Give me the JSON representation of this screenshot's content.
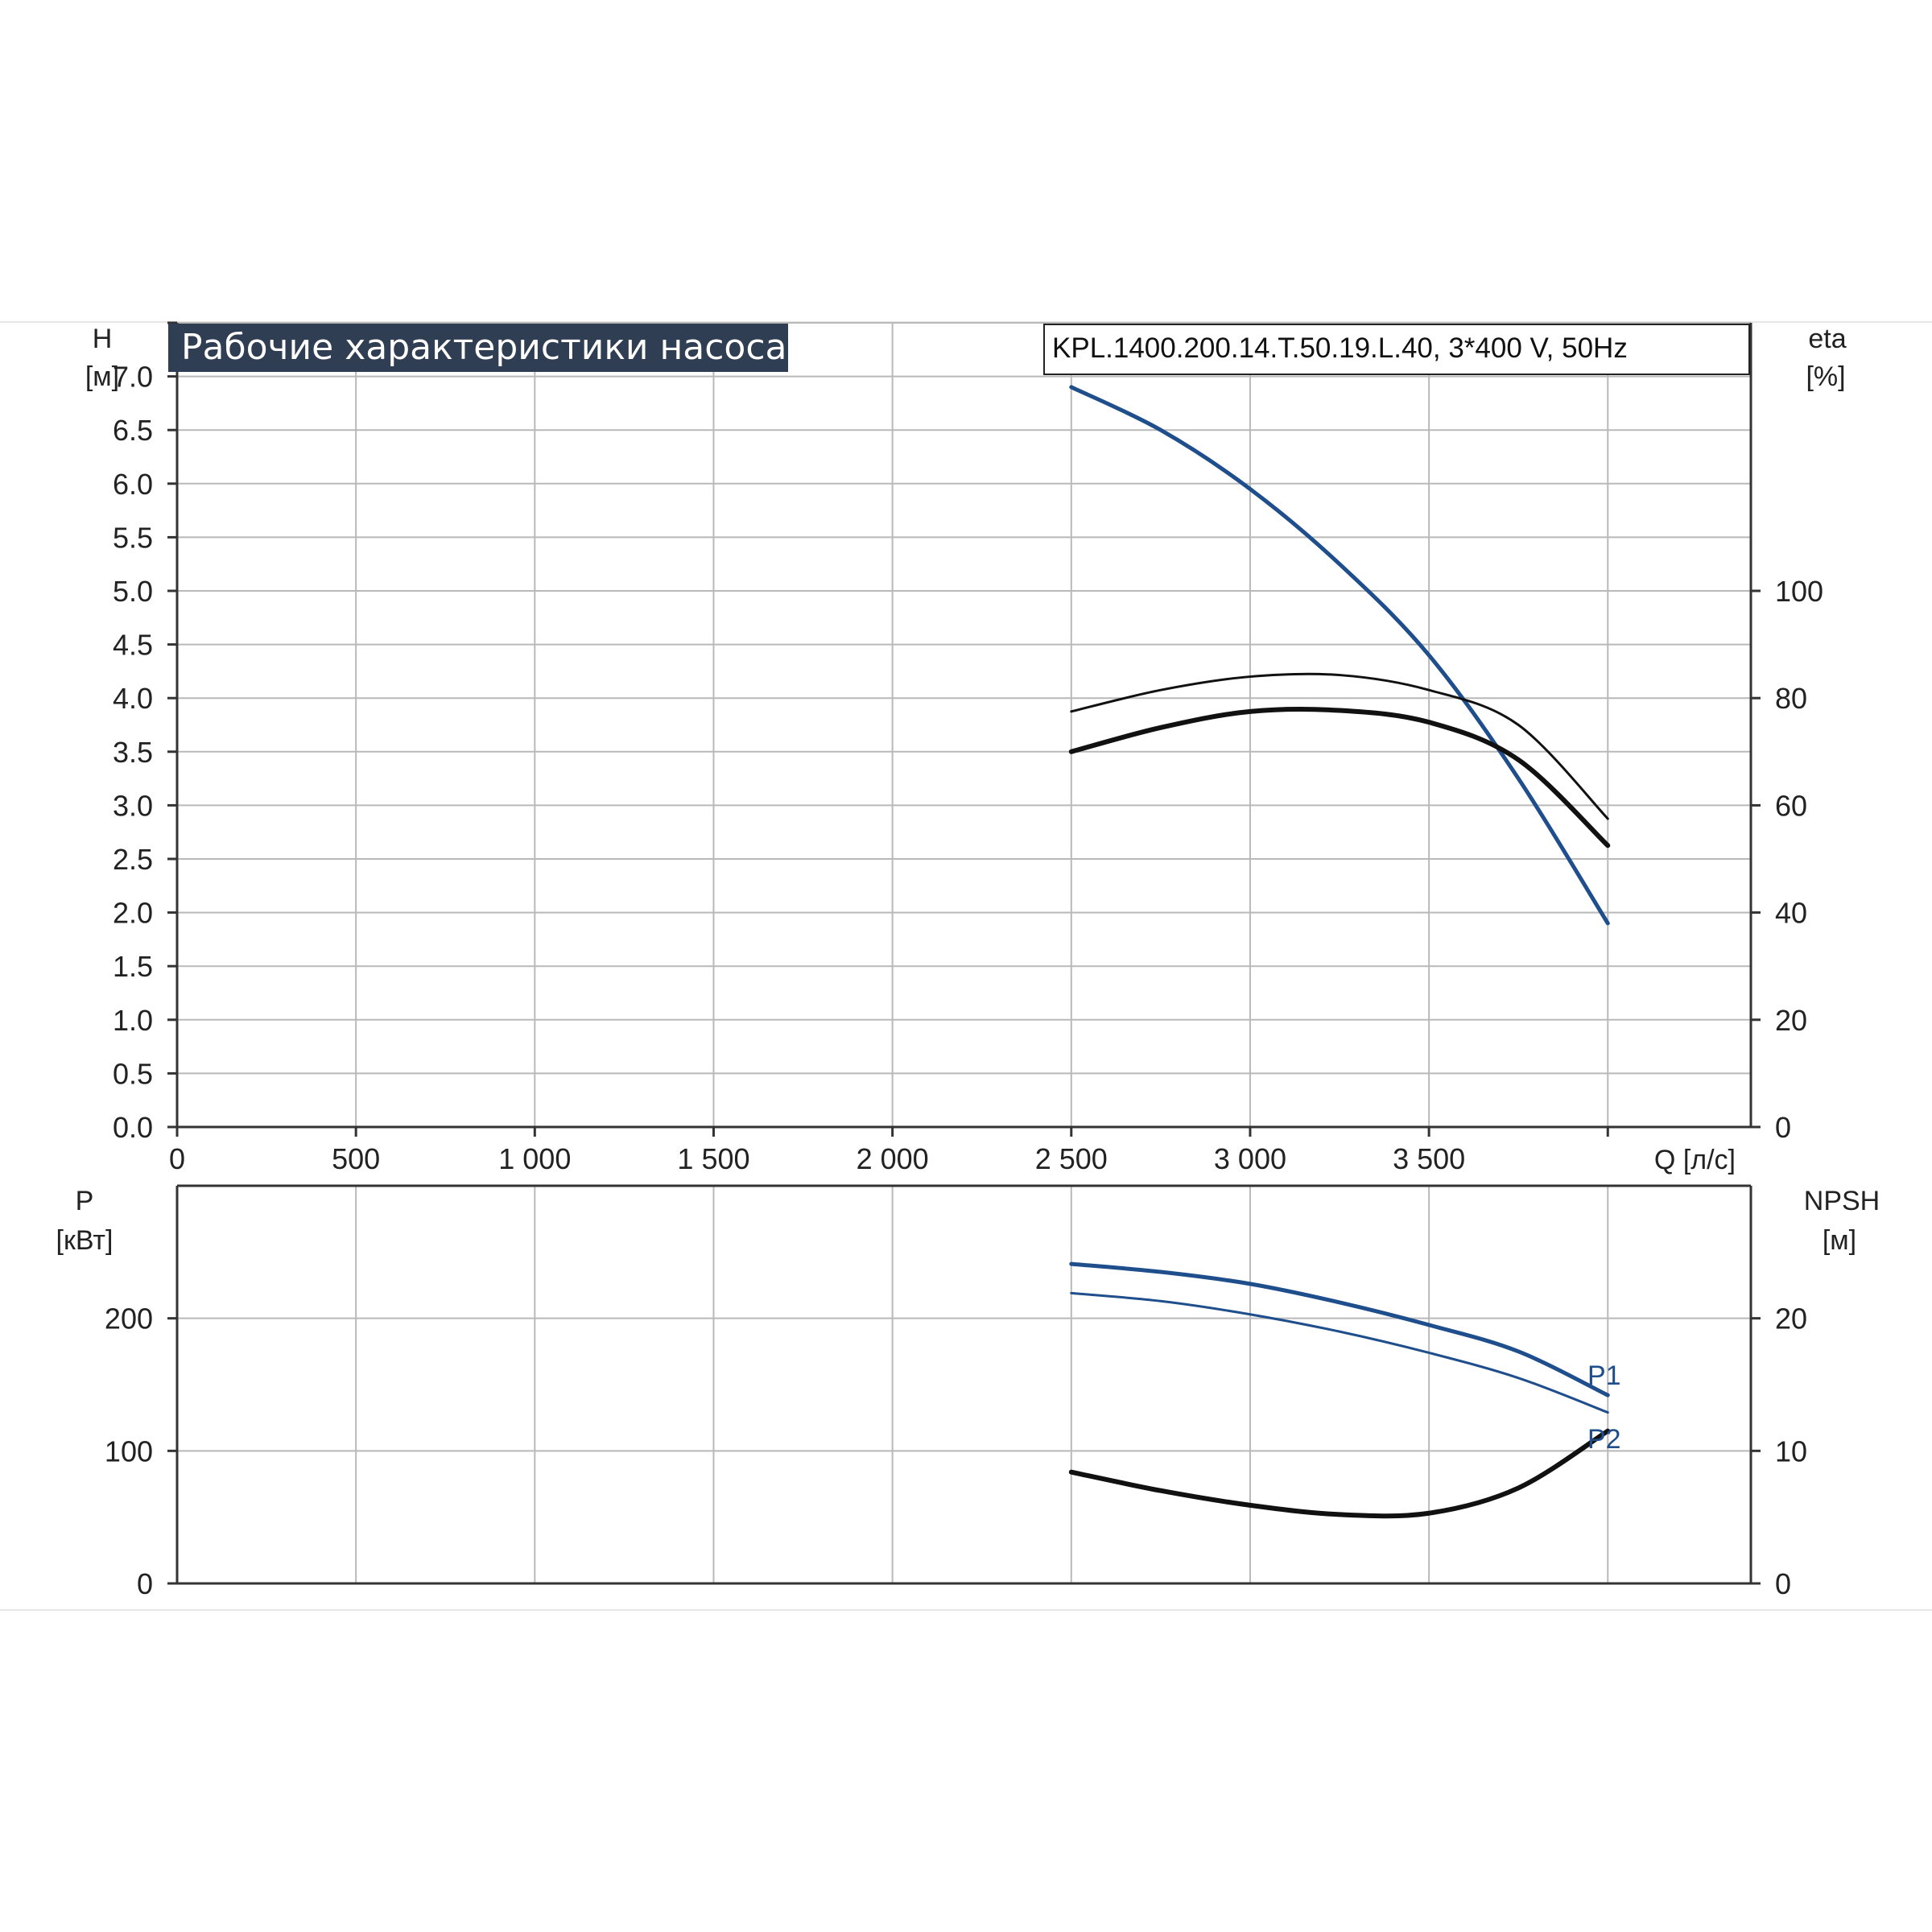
{
  "chart_data": [
    {
      "type": "line",
      "title": "Рабочие характеристики насоса",
      "model": "KPL.1400.200.14.T.50.19.L.40, 3*400 V, 50Hz",
      "x_unit_label": "Q [л/с]",
      "xlim": [
        0,
        4400
      ],
      "x_ticks": [
        0,
        500,
        1000,
        1500,
        2000,
        2500,
        3000,
        3500
      ],
      "x_tick_labels": [
        "0",
        "500",
        "1 000",
        "1 500",
        "2 000",
        "2 500",
        "3 000",
        "3 500"
      ],
      "y_left": {
        "label": "H",
        "unit": "[м]",
        "ylim": [
          0,
          7.5
        ],
        "ticks": [
          0.0,
          0.5,
          1.0,
          1.5,
          2.0,
          2.5,
          3.0,
          3.5,
          4.0,
          4.5,
          5.0,
          5.5,
          6.0,
          6.5,
          7.0
        ],
        "tick_labels": [
          "0.0",
          "0.5",
          "1.0",
          "1.5",
          "2.0",
          "2.5",
          "3.0",
          "3.5",
          "4.0",
          "4.5",
          "5.0",
          "5.5",
          "6.0",
          "6.5",
          "7.0"
        ]
      },
      "y_right": {
        "label": "eta",
        "unit": "[%]",
        "ylim": [
          0,
          150
        ],
        "ticks": [
          0,
          20,
          40,
          60,
          80,
          100
        ],
        "tick_labels": [
          "0",
          "20",
          "40",
          "60",
          "80",
          "100"
        ]
      },
      "grid": true,
      "series": [
        {
          "axis": "left",
          "color": "#1f4e8c",
          "width": 5,
          "x": [
            2500,
            2750,
            3000,
            3250,
            3500,
            3750,
            4000
          ],
          "y": [
            6.9,
            6.5,
            5.95,
            5.25,
            4.4,
            3.25,
            1.9
          ]
        },
        {
          "axis": "right",
          "color": "#111111",
          "width": 3,
          "x": [
            2500,
            2750,
            3000,
            3250,
            3500,
            3750,
            4000
          ],
          "y": [
            77.5,
            81.5,
            84.0,
            84.3,
            81.5,
            75.0,
            57.5
          ]
        },
        {
          "axis": "right",
          "color": "#111111",
          "width": 6,
          "x": [
            2500,
            2750,
            3000,
            3250,
            3500,
            3750,
            4000
          ],
          "y": [
            70.0,
            74.5,
            77.5,
            77.7,
            75.5,
            68.5,
            52.5
          ]
        }
      ]
    },
    {
      "type": "line",
      "xlim": [
        0,
        4400
      ],
      "x_ticks": [
        0,
        500,
        1000,
        1500,
        2000,
        2500,
        3000,
        3500
      ],
      "y_left": {
        "label": "P",
        "unit": "[кВт]",
        "ylim": [
          0,
          300
        ],
        "ticks": [
          0,
          100,
          200
        ],
        "tick_labels": [
          "0",
          "100",
          "200"
        ]
      },
      "y_right": {
        "label": "NPSH",
        "unit": "[м]",
        "ylim": [
          0,
          30
        ],
        "ticks": [
          0,
          10,
          20
        ],
        "tick_labels": [
          "0",
          "10",
          "20"
        ]
      },
      "grid": true,
      "series": [
        {
          "name": "P1",
          "axis": "left",
          "color": "#1f4e8c",
          "width": 5,
          "x": [
            2500,
            2750,
            3000,
            3250,
            3500,
            3750,
            4000
          ],
          "y": [
            241,
            235,
            226,
            212,
            195,
            175,
            142
          ]
        },
        {
          "name": "P2",
          "axis": "left",
          "color": "#1f4e8c",
          "width": 3,
          "x": [
            2500,
            2750,
            3000,
            3250,
            3500,
            3750,
            4000
          ],
          "y": [
            219,
            213,
            203,
            190,
            174,
            155,
            129
          ]
        },
        {
          "axis": "right",
          "color": "#111111",
          "width": 6,
          "x": [
            2500,
            2750,
            3000,
            3250,
            3500,
            3750,
            4000
          ],
          "y": [
            8.4,
            7.0,
            5.9,
            5.2,
            5.3,
            7.2,
            11.5
          ]
        }
      ]
    }
  ]
}
